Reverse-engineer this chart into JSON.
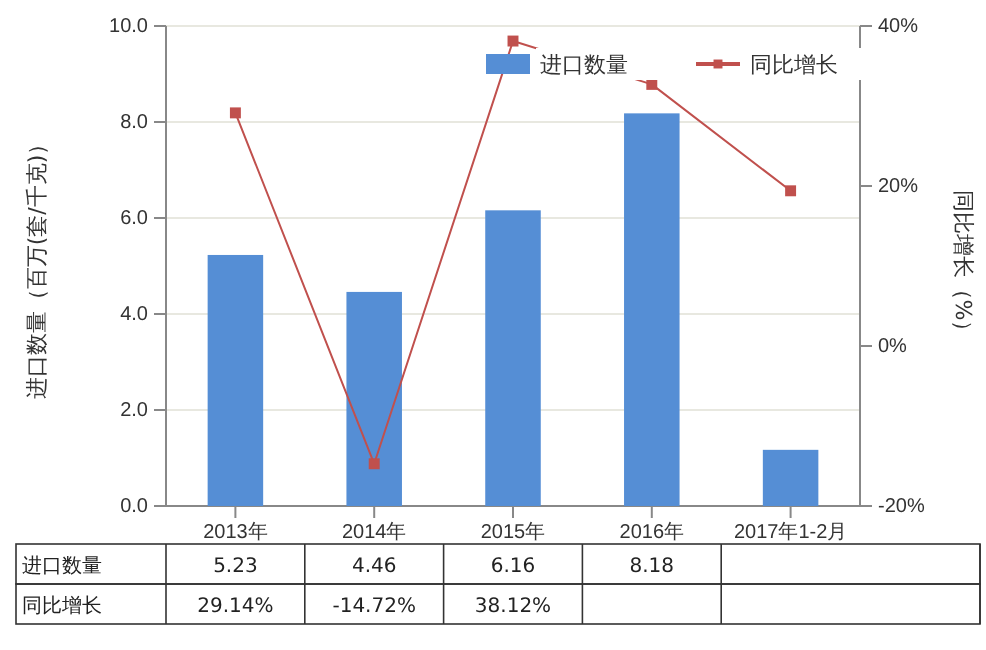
{
  "chart_data": {
    "type": "bar",
    "ylabel": "进口数量（百万(套/千克)）",
    "y2label": "同比增长（%）",
    "categories": [
      "2013年",
      "2014年",
      "2015年",
      "2016年",
      "2017年1-2月"
    ],
    "series": [
      {
        "name": "进口数量",
        "color": "#558ed5",
        "values": [
          5.23,
          4.46,
          6.16,
          8.18,
          1.17
        ],
        "value_labels": [
          "5.23",
          "4.46",
          "6.16",
          "8.18",
          null
        ]
      },
      {
        "name": "同比增长",
        "type": "line",
        "axis": "y2",
        "color": "#c0504d",
        "marker": "square",
        "values": [
          29.14,
          -14.72,
          38.12,
          32.7,
          19.4
        ],
        "value_labels": [
          "29.14%",
          "-14.72%",
          "38.12%",
          null,
          null
        ]
      }
    ],
    "ylim": [
      0,
      10
    ],
    "yticks": [
      {
        "value": 0,
        "label": "0.0"
      },
      {
        "value": 2,
        "label": "2.0"
      },
      {
        "value": 4,
        "label": "4.0"
      },
      {
        "value": 6,
        "label": "6.0"
      },
      {
        "value": 8,
        "label": "8.0"
      },
      {
        "value": 10,
        "label": "10.0"
      }
    ],
    "y2lim": [
      -20,
      40
    ],
    "y2ticks": [
      {
        "value": -20,
        "label": "-20%"
      },
      {
        "value": 0,
        "label": "0%"
      },
      {
        "value": 20,
        "label": "20%"
      },
      {
        "value": 40,
        "label": "40%"
      }
    ],
    "grid": "y",
    "legend": "top right"
  }
}
